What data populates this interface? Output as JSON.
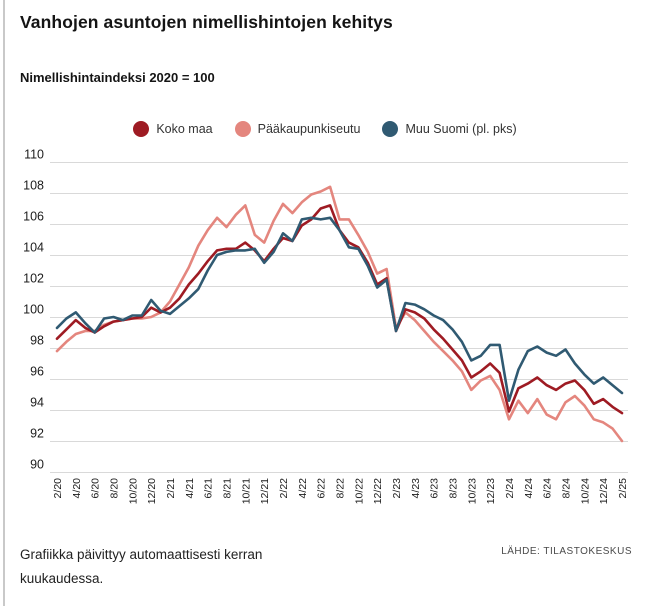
{
  "page": {
    "title": "Vanhojen asuntojen nimellishintojen kehitys",
    "subtitle": "Nimellishintaindeksi 2020 = 100"
  },
  "footer": {
    "line1": "Grafiikka päivittyy automaattisesti kerran",
    "line2": "kuukaudessa.",
    "source": "LÄHDE: TILASTOKESKUS"
  },
  "chart_data": {
    "type": "line",
    "title": "Vanhojen asuntojen nimellishintojen kehitys",
    "subtitle": "Nimellishintaindeksi 2020 = 100",
    "ylim": [
      90,
      110
    ],
    "ytick_step": 2,
    "grid": "horizontal",
    "legend_position": "top-center",
    "y_tick_labels": [
      "90",
      "92",
      "94",
      "96",
      "98",
      "100",
      "102",
      "104",
      "106",
      "108",
      "110"
    ],
    "x_tick_labels": [
      "2/20",
      "4/20",
      "6/20",
      "8/20",
      "10/20",
      "12/20",
      "2/21",
      "4/21",
      "6/21",
      "8/21",
      "10/21",
      "12/21",
      "2/22",
      "4/22",
      "6/22",
      "8/22",
      "10/22",
      "12/22",
      "2/23",
      "4/23",
      "6/23",
      "8/23",
      "10/23",
      "12/23",
      "2/24",
      "4/24",
      "6/24",
      "8/24",
      "10/24",
      "12/24",
      "2/25"
    ],
    "x_frequency": "monthly, first point 2/2020, last point 2/2025, ticks every second month",
    "series": [
      {
        "name": "Koko maa",
        "color": "#9E1B23",
        "values": [
          98.6,
          99.2,
          99.8,
          99.3,
          99.0,
          99.4,
          99.7,
          99.8,
          99.9,
          100.0,
          100.6,
          100.3,
          100.6,
          101.2,
          102.1,
          102.8,
          103.6,
          104.3,
          104.4,
          104.4,
          104.8,
          104.3,
          103.6,
          104.4,
          105.1,
          104.9,
          105.9,
          106.3,
          107.0,
          107.2,
          105.6,
          104.8,
          104.5,
          103.5,
          102.1,
          102.5,
          99.1,
          100.5,
          100.3,
          99.9,
          99.2,
          98.6,
          97.9,
          97.2,
          96.1,
          96.5,
          97.0,
          96.4,
          93.9,
          95.4,
          95.7,
          96.1,
          95.6,
          95.3,
          95.7,
          95.9,
          95.3,
          94.4,
          94.7,
          94.2,
          93.8
        ]
      },
      {
        "name": "Pääkaupunkiseutu",
        "color": "#E4867E",
        "values": [
          97.8,
          98.4,
          98.9,
          99.1,
          99.1,
          99.5,
          99.7,
          99.8,
          99.9,
          99.9,
          100.0,
          100.3,
          101.0,
          102.1,
          103.2,
          104.6,
          105.6,
          106.4,
          105.8,
          106.6,
          107.2,
          105.3,
          104.8,
          106.2,
          107.3,
          106.7,
          107.4,
          107.9,
          108.1,
          108.4,
          106.3,
          106.3,
          105.3,
          104.2,
          102.8,
          103.1,
          99.3,
          100.3,
          99.8,
          99.1,
          98.4,
          97.8,
          97.2,
          96.5,
          95.3,
          95.9,
          96.2,
          95.3,
          93.4,
          94.6,
          93.8,
          94.7,
          93.7,
          93.4,
          94.5,
          94.9,
          94.3,
          93.4,
          93.2,
          92.8,
          92.0
        ]
      },
      {
        "name": "Muu Suomi (pl. pks)",
        "color": "#305A72",
        "values": [
          99.3,
          99.9,
          100.3,
          99.6,
          99.0,
          99.9,
          100.0,
          99.8,
          100.1,
          100.1,
          101.1,
          100.4,
          100.2,
          100.7,
          101.2,
          101.8,
          103.0,
          104.0,
          104.2,
          104.3,
          104.3,
          104.4,
          103.5,
          104.2,
          105.4,
          104.9,
          106.3,
          106.4,
          106.3,
          106.4,
          105.6,
          104.5,
          104.4,
          103.3,
          101.9,
          102.4,
          99.1,
          100.9,
          100.8,
          100.5,
          100.1,
          99.8,
          99.2,
          98.4,
          97.2,
          97.5,
          98.2,
          98.2,
          94.6,
          96.6,
          97.8,
          98.1,
          97.7,
          97.5,
          97.9,
          97.0,
          96.3,
          95.7,
          96.1,
          95.6,
          95.1
        ]
      }
    ]
  }
}
